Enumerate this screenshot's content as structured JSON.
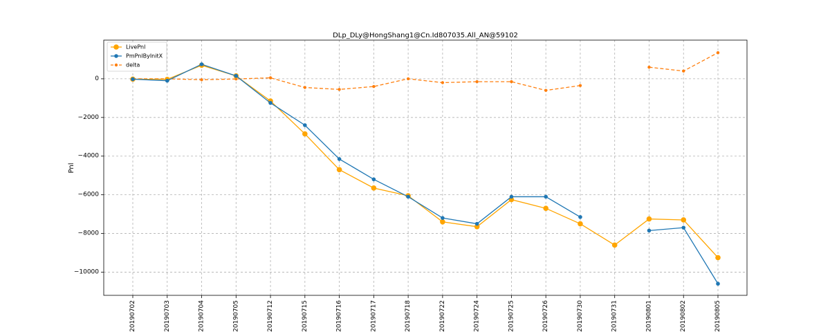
{
  "chart_data": {
    "type": "line",
    "title": "DLp_DLy@HongShang1@Cn.Id807035.All_AN@59102",
    "xlabel": "",
    "ylabel": "Pnl",
    "categories": [
      "20190702",
      "20190703",
      "20190704",
      "20190705",
      "20190712",
      "20190715",
      "20190716",
      "20190717",
      "20190718",
      "20190722",
      "20190724",
      "20190725",
      "20190726",
      "20190730",
      "20190731",
      "20190801",
      "20190802",
      "20190805"
    ],
    "ylim": [
      -11200,
      2000
    ],
    "yticks": [
      0,
      -2000,
      -4000,
      -6000,
      -8000,
      -10000
    ],
    "ytick_labels": [
      "0",
      "−2000",
      "−4000",
      "−6000",
      "−8000",
      "−10000"
    ],
    "grid": true,
    "legend_position": "top-left",
    "series": [
      {
        "name": "LivePnl",
        "color": "#FFA500",
        "style": "solid",
        "marker_radius": 3.8,
        "values": [
          -20,
          -30,
          700,
          150,
          -1150,
          -2850,
          -4700,
          -5650,
          -6050,
          -7400,
          -7650,
          -6250,
          -6700,
          -7500,
          -8600,
          -7250,
          -7300,
          -9250
        ]
      },
      {
        "name": "PmPnlByInitX",
        "color": "#1f77b4",
        "style": "solid",
        "marker_radius": 2.8,
        "values": [
          -20,
          -100,
          750,
          150,
          -1250,
          -2400,
          -4150,
          -5200,
          -6100,
          -7200,
          -7500,
          -6100,
          -6100,
          -7150,
          null,
          -7850,
          -7700,
          -10600
        ]
      },
      {
        "name": "delta",
        "color": "#ff7f0e",
        "style": "dashed",
        "marker_radius": 2.2,
        "values": [
          0,
          0,
          -50,
          -10,
          50,
          -450,
          -550,
          -400,
          0,
          -200,
          -150,
          -150,
          -600,
          -350,
          null,
          600,
          400,
          1350
        ]
      }
    ]
  }
}
